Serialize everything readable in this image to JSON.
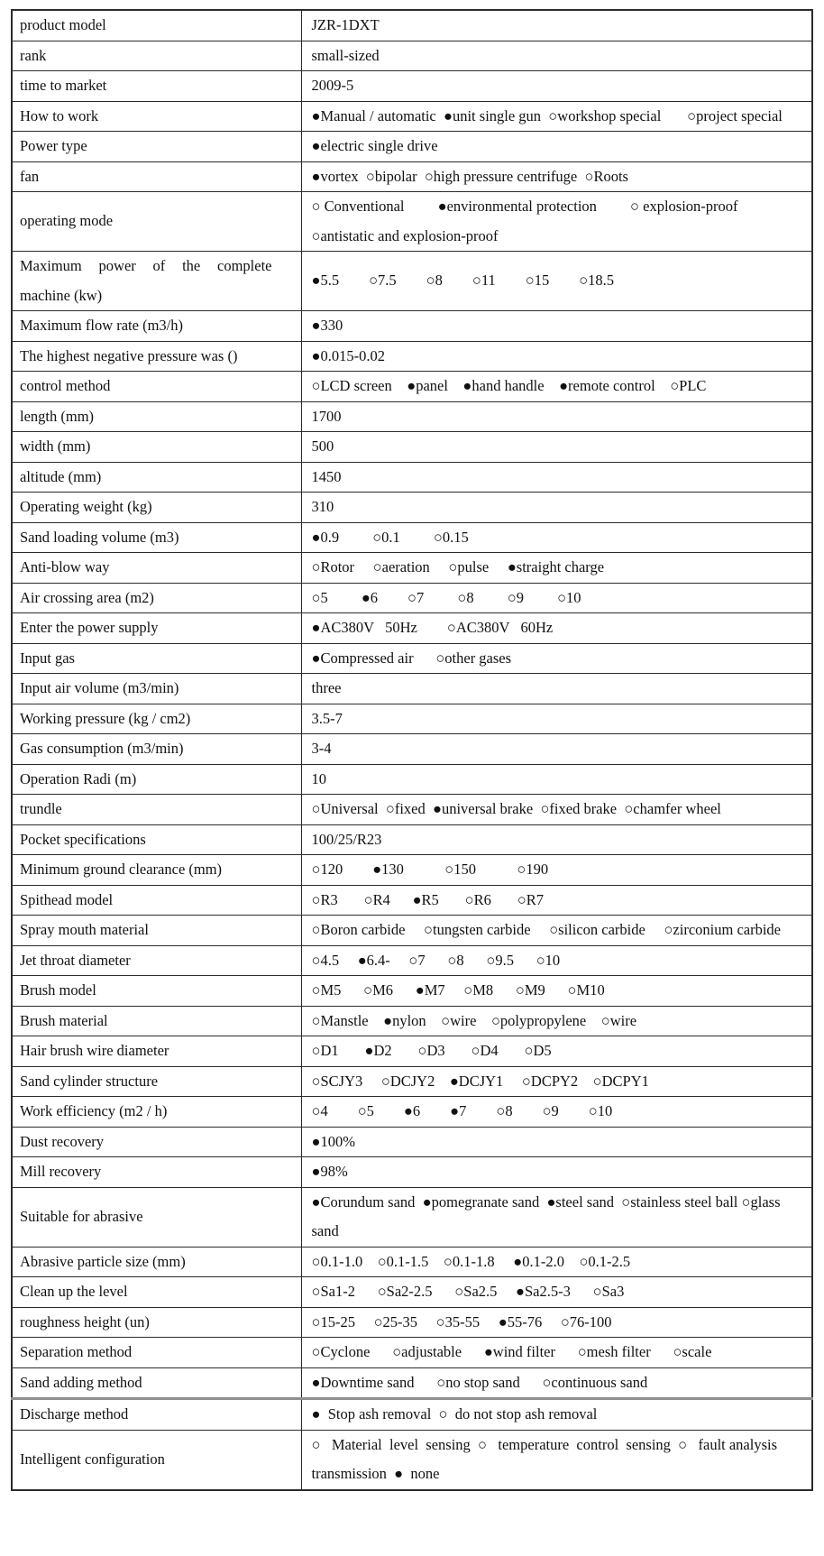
{
  "colors": {
    "background": "#ffffff",
    "text": "#111111",
    "border": "#2b2b2b",
    "heavy_rule": "#8f8f8f"
  },
  "bullets": {
    "selected_glyph": "●",
    "unselected_glyph": "○"
  },
  "table": {
    "rows": [
      {
        "label": "product model",
        "value": "JZR-1DXT"
      },
      {
        "label": "rank",
        "value": "small-sized"
      },
      {
        "label": "time to market",
        "value": "2009-5"
      },
      {
        "label": "How to work",
        "value": "●Manual / automatic  ●unit single gun  ○workshop special       ○project special"
      },
      {
        "label": "Power type",
        "value": "●electric single drive"
      },
      {
        "label": "fan",
        "value": "●vortex  ○bipolar  ○high pressure centrifuge  ○Roots"
      },
      {
        "label": "operating mode",
        "value": "○ Conventional         ●environmental protection         ○ explosion-proof ○antistatic and explosion-proof"
      },
      {
        "label": "Maximum power of the complete machine (kw)",
        "value": "●5.5        ○7.5        ○8        ○11        ○15        ○18.5"
      },
      {
        "label": "Maximum flow rate (m3/h)",
        "value": "●330"
      },
      {
        "label": "The highest negative pressure was ()",
        "value": "●0.015-0.02"
      },
      {
        "label": "control method",
        "value": "○LCD screen    ●panel    ●hand handle    ●remote control    ○PLC"
      },
      {
        "label": "length (mm)",
        "value": "1700"
      },
      {
        "label": "width (mm)",
        "value": "500"
      },
      {
        "label": "altitude (mm)",
        "value": "1450"
      },
      {
        "label": "Operating weight (kg)",
        "value": "310"
      },
      {
        "label": "Sand loading volume (m3)",
        "value": "●0.9         ○0.1         ○0.15"
      },
      {
        "label": "Anti-blow way",
        "value": "○Rotor     ○aeration     ○pulse     ●straight charge"
      },
      {
        "label": "Air crossing area (m2)",
        "value": "○5         ●6        ○7         ○8         ○9         ○10"
      },
      {
        "label": "Enter the power supply",
        "value": "●AC380V   50Hz        ○AC380V   60Hz"
      },
      {
        "label": "Input gas",
        "value": "●Compressed air      ○other gases"
      },
      {
        "label": "Input air volume (m3/min)",
        "value": "three"
      },
      {
        "label": "Working pressure (kg / cm2)",
        "value": "3.5-7"
      },
      {
        "label": "Gas consumption (m3/min)",
        "value": "3-4"
      },
      {
        "label": "Operation Radi (m)",
        "value": "10"
      },
      {
        "label": "trundle",
        "value": "○Universal  ○fixed  ●universal brake  ○fixed brake  ○chamfer wheel"
      },
      {
        "label": "Pocket specifications",
        "value": "100/25/R23"
      },
      {
        "label": "Minimum ground clearance (mm)",
        "value": "○120        ●130           ○150           ○190"
      },
      {
        "label": "Spithead model",
        "value": "○R3       ○R4      ●R5       ○R6       ○R7"
      },
      {
        "label": "Spray mouth material",
        "value": "○Boron carbide     ○tungsten carbide     ○silicon carbide     ○zirconium carbide"
      },
      {
        "label": "Jet throat diameter",
        "value": "○4.5     ●6.4-     ○7      ○8      ○9.5      ○10"
      },
      {
        "label": "Brush model",
        "value": "○M5      ○M6      ●M7     ○M8      ○M9      ○M10"
      },
      {
        "label": "Brush material",
        "value": "○Manstle    ●nylon    ○wire    ○polypropylene    ○wire"
      },
      {
        "label": "Hair brush wire diameter",
        "value": "○D1       ●D2       ○D3       ○D4       ○D5"
      },
      {
        "label": "Sand cylinder structure",
        "value": "○SCJY3     ○DCJY2    ●DCJY1     ○DCPY2    ○DCPY1"
      },
      {
        "label": "Work efficiency (m2 / h)",
        "value": "○4        ○5        ●6        ●7        ○8        ○9        ○10"
      },
      {
        "label": "Dust recovery",
        "value": "●100%"
      },
      {
        "label": "Mill recovery",
        "value": "●98%"
      },
      {
        "label": "Suitable for abrasive",
        "value": "●Corundum sand  ●pomegranate sand  ●steel sand  ○stainless steel ball ○glass sand"
      },
      {
        "label": "Abrasive particle size (mm)",
        "value": "○0.1-1.0    ○0.1-1.5    ○0.1-1.8     ●0.1-2.0    ○0.1-2.5"
      },
      {
        "label": "Clean up the level",
        "value": "○Sa1-2      ○Sa2-2.5      ○Sa2.5     ●Sa2.5-3      ○Sa3"
      },
      {
        "label": "roughness height (un)",
        "value": "○15-25     ○25-35     ○35-55     ●55-76     ○76-100"
      },
      {
        "label": "Separation method",
        "value": "○Cyclone      ○adjustable      ●wind filter      ○mesh filter      ○scale"
      },
      {
        "label": "Sand adding method",
        "value": "●Downtime sand      ○no stop sand      ○continuous sand"
      },
      {
        "label": "Discharge method",
        "value": "●  Stop ash removal  ○  do not stop ash removal"
      },
      {
        "label": "Intelligent configuration",
        "value": "○   Material  level  sensing  ○   temperature  control  sensing  ○   fault analysis transmission  ●  none"
      }
    ]
  }
}
